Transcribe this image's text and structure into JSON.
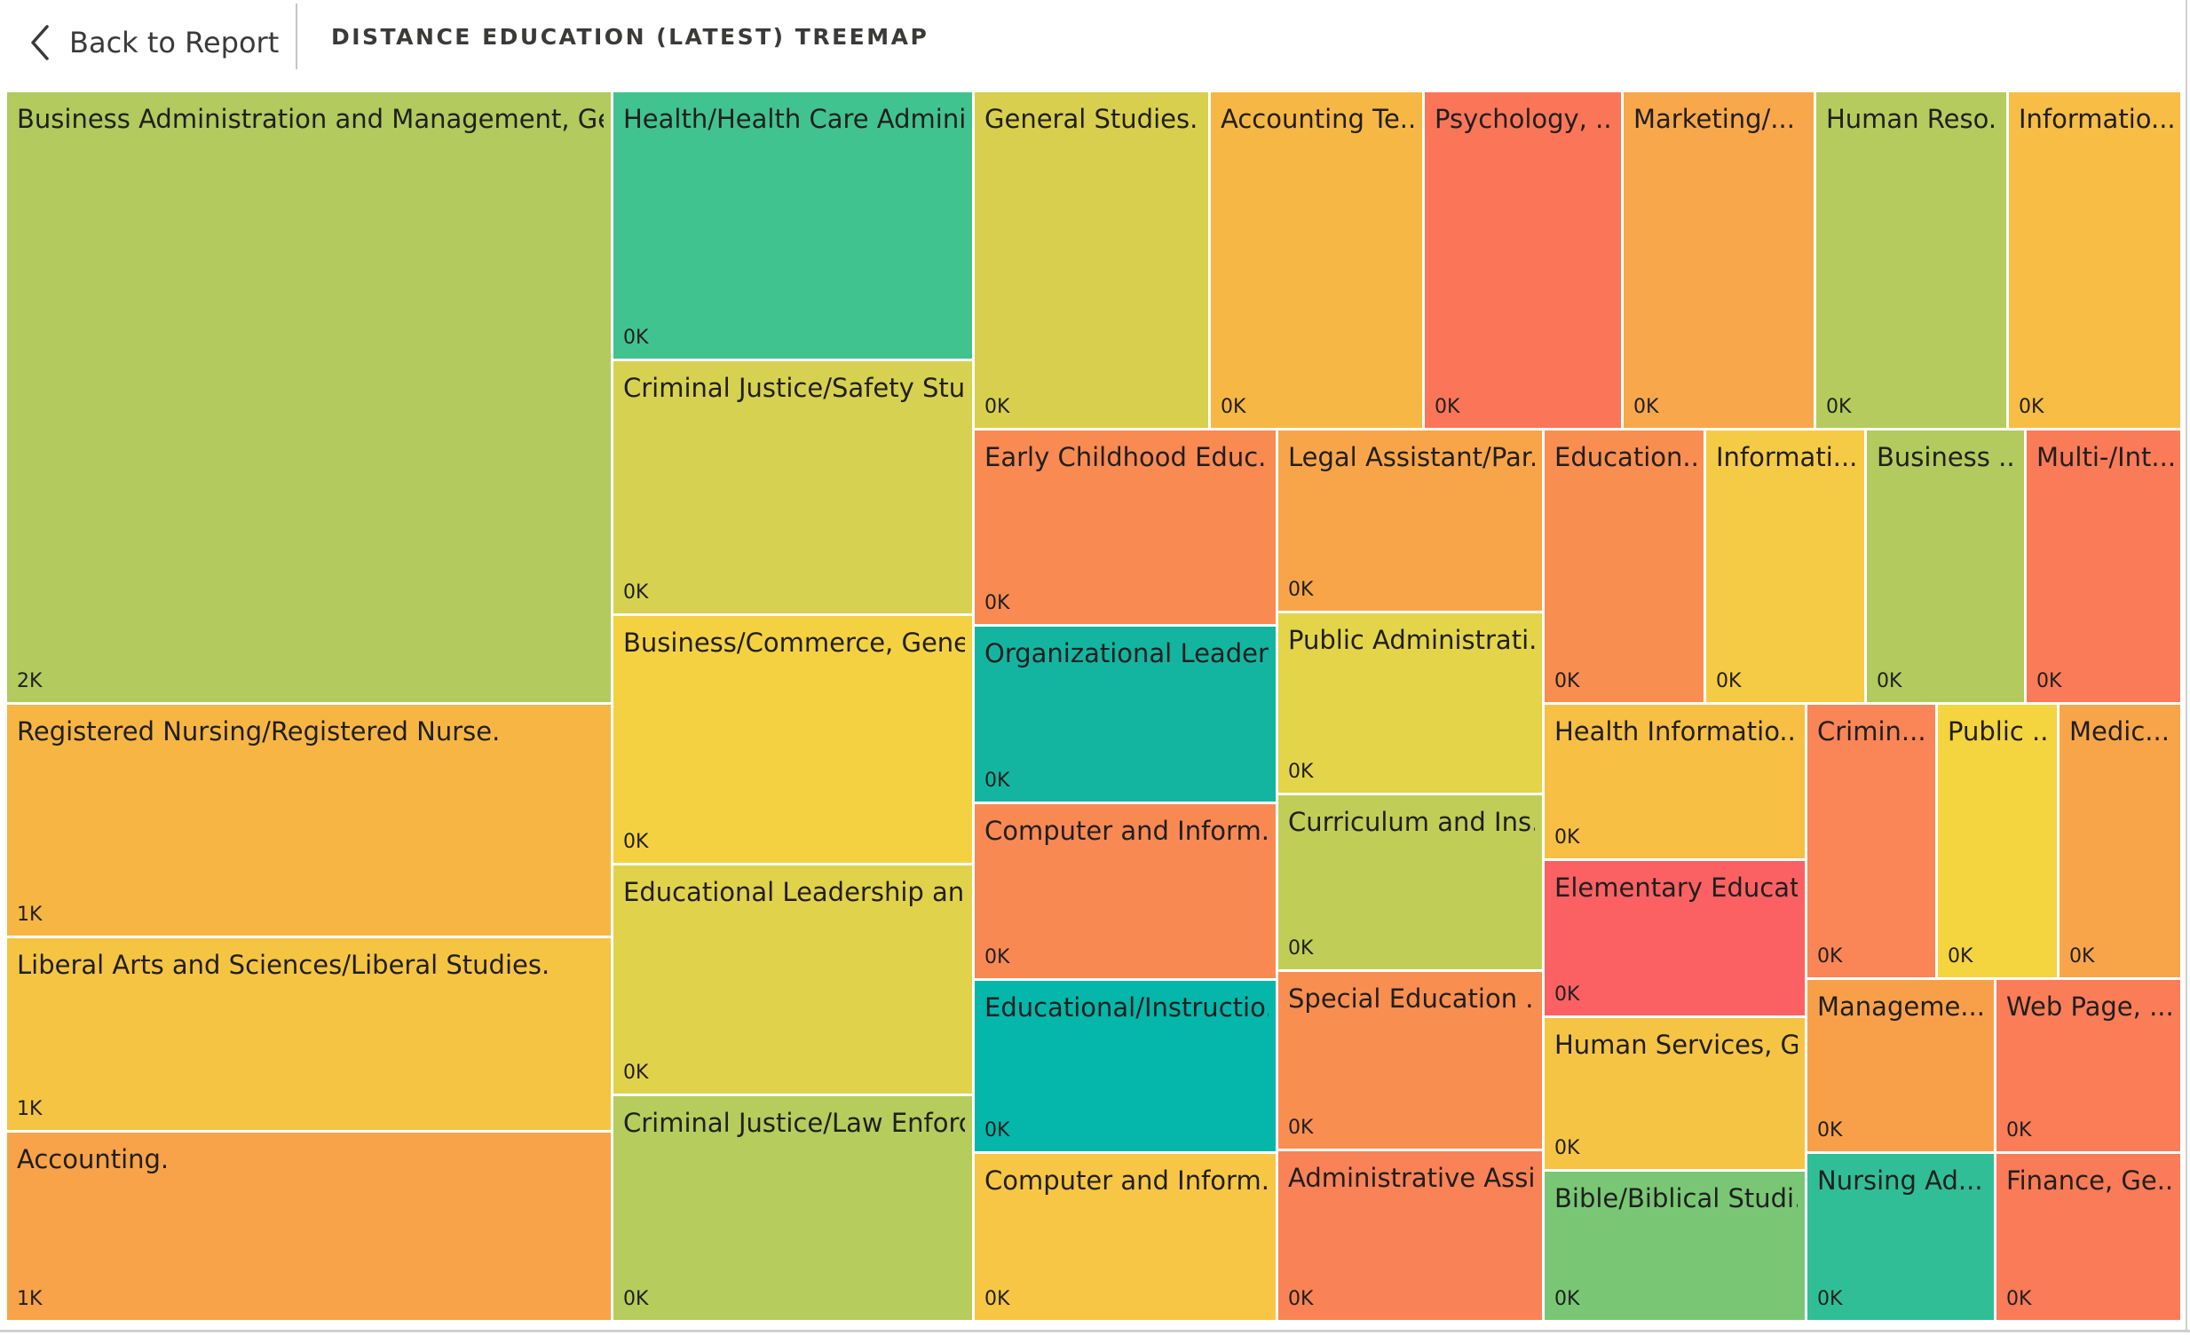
{
  "header": {
    "back_label": "Back to Report",
    "title": "DISTANCE EDUCATION (LATEST) TREEMAP"
  },
  "icons": {
    "back": "chevron-left-icon"
  },
  "chart_data": {
    "type": "treemap",
    "title": "DISTANCE EDUCATION (LATEST) TREEMAP",
    "value_format": "thousands (K)",
    "color_note": "tiles colored on a red-orange-yellow-green-teal scale",
    "tiles": [
      {
        "label": "Business Administration and Management, Gen...",
        "value_label": "2K",
        "color": "#b2ca5e"
      },
      {
        "label": "Registered Nursing/Registered Nurse.",
        "value_label": "1K",
        "color": "#f7b544"
      },
      {
        "label": "Liberal Arts and Sciences/Liberal Studies.",
        "value_label": "1K",
        "color": "#f5c443"
      },
      {
        "label": "Accounting.",
        "value_label": "1K",
        "color": "#f8a249"
      },
      {
        "label": "Health/Health Care Admini...",
        "value_label": "0K",
        "color": "#41c38f"
      },
      {
        "label": "Criminal Justice/Safety Stu...",
        "value_label": "0K",
        "color": "#d6d150"
      },
      {
        "label": "Business/Commerce, Gener...",
        "value_label": "0K",
        "color": "#f4d140"
      },
      {
        "label": "Educational Leadership an...",
        "value_label": "0K",
        "color": "#e1d24c"
      },
      {
        "label": "Criminal Justice/Law Enforc...",
        "value_label": "0K",
        "color": "#b6cc5c"
      },
      {
        "label": "General Studies.",
        "value_label": "0K",
        "color": "#d8cf4e"
      },
      {
        "label": "Accounting Te...",
        "value_label": "0K",
        "color": "#f7b744"
      },
      {
        "label": "Psychology, ...",
        "value_label": "0K",
        "color": "#fb7659"
      },
      {
        "label": "Marketing/...",
        "value_label": "0K",
        "color": "#f8a74b"
      },
      {
        "label": "Human Reso...",
        "value_label": "0K",
        "color": "#b5cb5d"
      },
      {
        "label": "Informatio...",
        "value_label": "0K",
        "color": "#f7bd44"
      },
      {
        "label": "Early Childhood Educ...",
        "value_label": "0K",
        "color": "#f98a52"
      },
      {
        "label": "Organizational Leader...",
        "value_label": "0K",
        "color": "#13b5a0"
      },
      {
        "label": "Computer and Inform...",
        "value_label": "0K",
        "color": "#f98953"
      },
      {
        "label": "Educational/Instructio...",
        "value_label": "0K",
        "color": "#05b6aa"
      },
      {
        "label": "Computer and Inform...",
        "value_label": "0K",
        "color": "#f6c644"
      },
      {
        "label": "Legal Assistant/Par...",
        "value_label": "0K",
        "color": "#f8a549"
      },
      {
        "label": "Public Administrati...",
        "value_label": "0K",
        "color": "#e3d44a"
      },
      {
        "label": "Curriculum and Ins...",
        "value_label": "0K",
        "color": "#c0ce57"
      },
      {
        "label": "Special Education ...",
        "value_label": "0K",
        "color": "#f98e51"
      },
      {
        "label": "Administrative Assi...",
        "value_label": "0K",
        "color": "#fa8257"
      },
      {
        "label": "Education...",
        "value_label": "0K",
        "color": "#f98e51"
      },
      {
        "label": "Informati...",
        "value_label": "0K",
        "color": "#f5ca44"
      },
      {
        "label": "Business ...",
        "value_label": "0K",
        "color": "#b2ca5e"
      },
      {
        "label": "Multi-/Int...",
        "value_label": "0K",
        "color": "#fa7b57"
      },
      {
        "label": "Health Informatio...",
        "value_label": "0K",
        "color": "#f7bf43"
      },
      {
        "label": "Elementary Educat...",
        "value_label": "0K",
        "color": "#fb6163"
      },
      {
        "label": "Human Services, G...",
        "value_label": "0K",
        "color": "#f5c444"
      },
      {
        "label": "Bible/Biblical Studi...",
        "value_label": "0K",
        "color": "#79c775"
      },
      {
        "label": "Crimin...",
        "value_label": "0K",
        "color": "#fa8556"
      },
      {
        "label": "Public ...",
        "value_label": "0K",
        "color": "#f4d43f"
      },
      {
        "label": "Medic...",
        "value_label": "0K",
        "color": "#f8a54a"
      },
      {
        "label": "Manageme...",
        "value_label": "0K",
        "color": "#f8a049"
      },
      {
        "label": "Web Page, ...",
        "value_label": "0K",
        "color": "#fa7d57"
      },
      {
        "label": "Nursing Ad...",
        "value_label": "0K",
        "color": "#30be96"
      },
      {
        "label": "Finance, Ge...",
        "value_label": "0K",
        "color": "#fa7b57"
      }
    ]
  }
}
